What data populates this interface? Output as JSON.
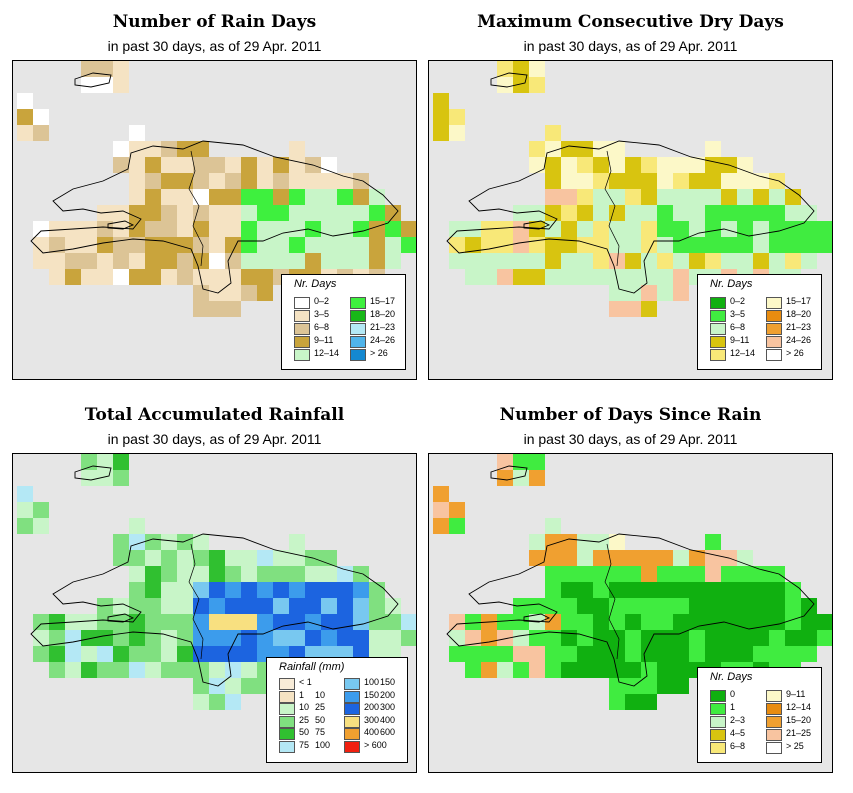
{
  "panels": [
    {
      "id": "rain-days",
      "title": "Number of Rain Days",
      "subtitle": "in past 30 days, as of  29 Apr. 2011",
      "legend": {
        "title": "Nr. Days",
        "items": [
          {
            "label": "0–2",
            "color": "#ffffff"
          },
          {
            "label": "3–5",
            "color": "#f5e3c3"
          },
          {
            "label": "6–8",
            "color": "#dcc496"
          },
          {
            "label": "9–11",
            "color": "#c9a43c"
          },
          {
            "label": "12–14",
            "color": "#c8f5c8"
          },
          {
            "label": "15–17",
            "color": "#3ef03e"
          },
          {
            "label": "18–20",
            "color": "#18b818"
          },
          {
            "label": "21–23",
            "color": "#b4e8f5"
          },
          {
            "label": "24–26",
            "color": "#50b4ea"
          },
          {
            "label": "> 26",
            "color": "#1488d0"
          }
        ]
      }
    },
    {
      "id": "dry-days",
      "title": "Maximum Consecutive Dry Days",
      "subtitle": "in past 30 days, as of  29 Apr. 2011",
      "legend": {
        "title": "Nr. Days",
        "items": [
          {
            "label": "0–2",
            "color": "#10b010"
          },
          {
            "label": "3–5",
            "color": "#40ec40"
          },
          {
            "label": "6–8",
            "color": "#c8f5c8"
          },
          {
            "label": "9–11",
            "color": "#d8c410"
          },
          {
            "label": "12–14",
            "color": "#f8e878"
          },
          {
            "label": "15–17",
            "color": "#fcf8c8"
          },
          {
            "label": "18–20",
            "color": "#e88c10"
          },
          {
            "label": "21–23",
            "color": "#f0a030"
          },
          {
            "label": "24–26",
            "color": "#f8c4a0"
          },
          {
            "label": "> 26",
            "color": "#ffffff"
          }
        ]
      }
    },
    {
      "id": "rainfall",
      "title": "Total Accumulated Rainfall",
      "subtitle": "in past 30 days, as of  29 Apr. 2011",
      "legend": {
        "title": "Rainfall (mm)",
        "items": [
          {
            "label": "< 1",
            "label2": "",
            "color": "#f8ecd8"
          },
          {
            "label": "1",
            "label2": "10",
            "color": "#f5e3c3"
          },
          {
            "label": "10",
            "label2": "25",
            "color": "#c8f5c8"
          },
          {
            "label": "25",
            "label2": "50",
            "color": "#80e080"
          },
          {
            "label": "50",
            "label2": "75",
            "color": "#30c030"
          },
          {
            "label": "75",
            "label2": "100",
            "color": "#b4e8f5"
          },
          {
            "label": "100",
            "label2": "150",
            "color": "#78c8f0"
          },
          {
            "label": "150",
            "label2": "200",
            "color": "#3c9cec"
          },
          {
            "label": "200",
            "label2": "300",
            "color": "#1c64e0"
          },
          {
            "label": "300",
            "label2": "400",
            "color": "#f8e080"
          },
          {
            "label": "400",
            "label2": "600",
            "color": "#f0a030"
          },
          {
            "label": "> 600",
            "label2": "",
            "color": "#f02010"
          }
        ]
      }
    },
    {
      "id": "days-since-rain",
      "title": "Number of Days Since Rain",
      "subtitle": "in past 30 days, as of  29 Apr. 2011",
      "legend": {
        "title": "Nr. Days",
        "items": [
          {
            "label": "0",
            "color": "#10b010"
          },
          {
            "label": "1",
            "color": "#40ec40"
          },
          {
            "label": "2–3",
            "color": "#c8f5c8"
          },
          {
            "label": "4–5",
            "color": "#d8c410"
          },
          {
            "label": "6–8",
            "color": "#f8e878"
          },
          {
            "label": "9–11",
            "color": "#fcf8c8"
          },
          {
            "label": "12–14",
            "color": "#e88c10"
          },
          {
            "label": "15–20",
            "color": "#f0a030"
          },
          {
            "label": "21–25",
            "color": "#f8c4a0"
          },
          {
            "label": "> 25",
            "color": "#ffffff"
          }
        ]
      }
    }
  ]
}
